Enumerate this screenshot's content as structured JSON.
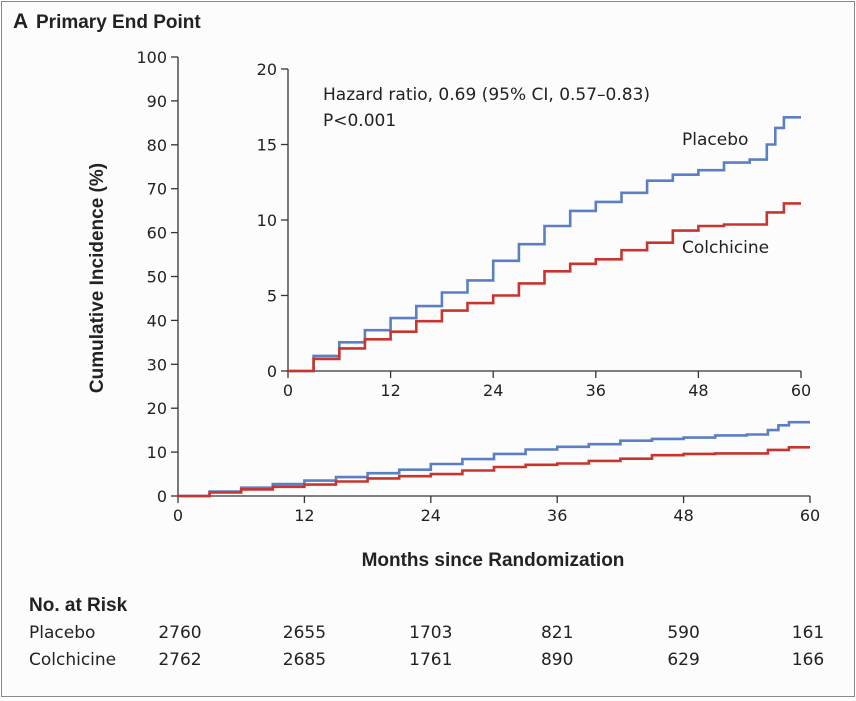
{
  "panel_label": "A",
  "panel_title": "Primary End Point",
  "colors": {
    "placebo": "#5b7fc4",
    "colchicine": "#c8352e",
    "axis": "#333333"
  },
  "chart_data": [
    {
      "type": "line",
      "role": "main",
      "xlabel": "Months since Randomization",
      "ylabel": "Cumulative Incidence (%)",
      "xlim": [
        0,
        60
      ],
      "ylim": [
        0,
        100
      ],
      "xticks": [
        0,
        12,
        24,
        36,
        48,
        60
      ],
      "yticks": [
        0,
        10,
        20,
        30,
        40,
        50,
        60,
        70,
        80,
        90,
        100
      ],
      "series": [
        {
          "name": "Placebo",
          "color": "#5b7fc4",
          "x": [
            0,
            3,
            6,
            9,
            12,
            15,
            18,
            21,
            24,
            27,
            30,
            33,
            36,
            39,
            42,
            45,
            48,
            51,
            54,
            56,
            57,
            58,
            60
          ],
          "y": [
            0,
            1.0,
            1.9,
            2.7,
            3.5,
            4.3,
            5.2,
            6.0,
            7.3,
            8.4,
            9.6,
            10.6,
            11.2,
            11.8,
            12.6,
            13.0,
            13.3,
            13.8,
            14.0,
            15.0,
            16.1,
            16.8,
            16.8
          ]
        },
        {
          "name": "Colchicine",
          "color": "#c8352e",
          "x": [
            0,
            3,
            6,
            9,
            12,
            15,
            18,
            21,
            24,
            27,
            30,
            33,
            36,
            39,
            42,
            45,
            48,
            51,
            54,
            56,
            58,
            60
          ],
          "y": [
            0,
            0.8,
            1.5,
            2.1,
            2.6,
            3.3,
            4.0,
            4.5,
            5.0,
            5.8,
            6.6,
            7.1,
            7.4,
            8.0,
            8.5,
            9.3,
            9.6,
            9.7,
            9.7,
            10.5,
            11.1,
            11.1
          ]
        }
      ]
    },
    {
      "type": "line",
      "role": "inset",
      "xlim": [
        0,
        60
      ],
      "ylim": [
        0,
        20
      ],
      "xticks": [
        0,
        12,
        24,
        36,
        48,
        60
      ],
      "yticks": [
        0,
        5,
        10,
        15,
        20
      ],
      "annotation": [
        "Hazard ratio, 0.69 (95% CI, 0.57–0.83)",
        "P<0.001"
      ],
      "series_labels": [
        "Placebo",
        "Colchicine"
      ]
    }
  ],
  "risk_table": {
    "title": "No. at Risk",
    "rows": [
      {
        "label": "Placebo",
        "values": [
          "2760",
          "2655",
          "1703",
          "821",
          "590",
          "161"
        ]
      },
      {
        "label": "Colchicine",
        "values": [
          "2762",
          "2685",
          "1761",
          "890",
          "629",
          "166"
        ]
      }
    ]
  }
}
